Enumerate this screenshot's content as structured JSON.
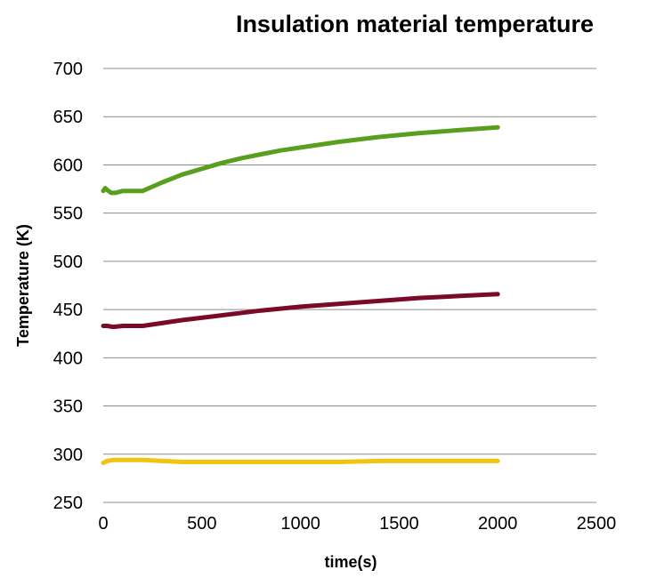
{
  "chart_data": {
    "type": "line",
    "title": "Insulation material temperature",
    "xlabel": "time(s)",
    "ylabel": "Temperature (K)",
    "xlim": [
      0,
      2500
    ],
    "ylim": [
      250,
      700
    ],
    "xticks": [
      0,
      500,
      1000,
      1500,
      2000,
      2500
    ],
    "yticks": [
      250,
      300,
      350,
      400,
      450,
      500,
      550,
      600,
      650,
      700
    ],
    "grid": true,
    "legend": "none",
    "series": [
      {
        "color": "#5a9e1e",
        "x": [
          0,
          10,
          20,
          40,
          60,
          100,
          150,
          200,
          300,
          400,
          500,
          600,
          700,
          800,
          900,
          1000,
          1200,
          1400,
          1600,
          1800,
          2000
        ],
        "y": [
          573,
          576,
          574,
          571,
          571,
          573,
          573,
          573,
          582,
          590,
          596,
          602,
          607,
          611,
          615,
          618,
          624,
          629,
          633,
          636,
          639
        ]
      },
      {
        "color": "#7b0a28",
        "x": [
          0,
          20,
          50,
          100,
          150,
          200,
          400,
          600,
          800,
          1000,
          1200,
          1400,
          1600,
          1800,
          2000
        ],
        "y": [
          433,
          433,
          432,
          433,
          433,
          433,
          439,
          444,
          449,
          453,
          456,
          459,
          462,
          464,
          466
        ]
      },
      {
        "color": "#f2c40f",
        "x": [
          0,
          20,
          50,
          100,
          200,
          300,
          400,
          600,
          800,
          1000,
          1200,
          1400,
          1600,
          1800,
          2000
        ],
        "y": [
          291,
          293,
          294,
          294,
          294,
          293,
          292,
          292,
          292,
          292,
          292,
          293,
          293,
          293,
          293
        ]
      }
    ]
  }
}
